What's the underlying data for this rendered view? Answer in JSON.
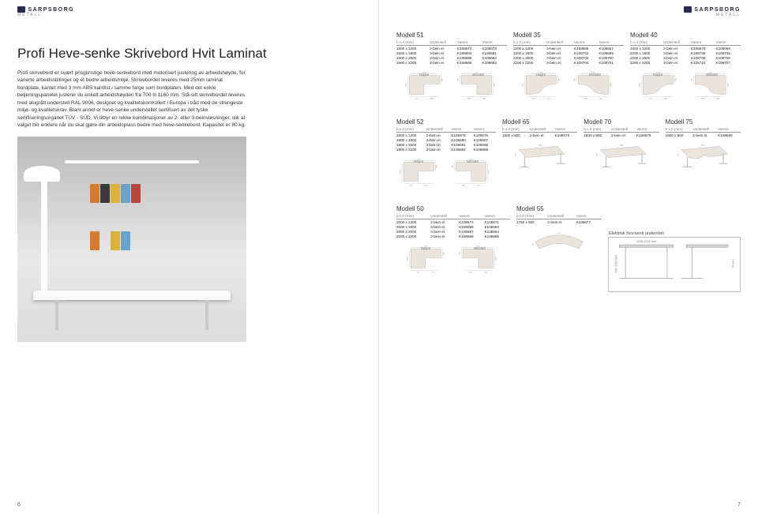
{
  "brand": "SARPSBORG",
  "brand_sub": "METALL",
  "page_left_num": "6",
  "page_right_num": "7",
  "title": "Profi Heve-senke Skrivebord Hvit Laminat",
  "description": "Profi skrivebord er svært prisgunstige heve-senkebord med motorisert justering av arbeidshøyde, for varierte arbeidsstillinger og et bedre arbeidsmiljø. Skrivebordet leveres med 25mm laminat bordplate, kantet med 3 mm ABS kantlist i samme farge som bordplaten. Med det enkle betjeningspanelet justerer du enkelt arbeidshøyden fra 700 til 1160 mm. Stå-sitt skrivebordet leveres med alugrått understell RAL 9006, designet og kvalitetskontrollert i Europa i tråd med de strengeste miljø- og kvalitetskrav. Blant annet er heve-senke understellet sertifisert av det tyske sertifiseringsorganet TÜV - SÜD. Vi tilbyr en rekke kombinasjoner av 2- eller 3-beinsløsninger, slik at valget blir enklere når du skal gjøre din arbeidsplass bedre med heve-senkebord. Kapasitet er 80 kg.",
  "spec_headers": [
    "b x d (mm)",
    "Understell",
    "Varenr.",
    "Varenr."
  ],
  "col_labels": {
    "venstre": "Venstre",
    "hoyre": "Høyre"
  },
  "shape_labels": {
    "hoyre": "Høyre",
    "venstre": "Venstre"
  },
  "electric_caption": "Elektrisk hev/senk understell",
  "electric_dims": {
    "width_range": "1100-1700 mm",
    "height_range": "700-1160 mm",
    "stroke": "70 mm"
  },
  "models": {
    "m51": {
      "name": "Modell 51",
      "rows": [
        [
          "1600 x 1200",
          "2-bein el.",
          "K108674",
          "K108673"
        ],
        [
          "1600 x 1800",
          "3-bein el.",
          "K108684",
          "K108681"
        ],
        [
          "1600 x 2000",
          "3-bein el.",
          "K108685",
          "K108682"
        ],
        [
          "1600 x 2200",
          "3-bein el.",
          "K108686",
          "K108683"
        ]
      ],
      "dims": {
        "w1": "1600",
        "w2": "1600",
        "d1": "800",
        "d2": "800",
        "d3": "1200",
        "off1": "600",
        "off2": "600"
      }
    },
    "m35": {
      "name": "Modell 35",
      "rows": [
        [
          "2200 x 1200",
          "2-bein el.",
          "K108668",
          "K108667"
        ],
        [
          "2200 x 1800",
          "3-bein el.",
          "K108702",
          "K108699"
        ],
        [
          "2200 x 2000",
          "3-bein el.",
          "K108703",
          "K108700"
        ],
        [
          "2200 x 2200",
          "3-bein el.",
          "K108704",
          "K108701"
        ]
      ],
      "dims": {
        "w1": "2200",
        "w2": "2200",
        "d1": "800",
        "d2": "800",
        "d3": "1200",
        "off1": "600",
        "off2": "600"
      }
    },
    "m40": {
      "name": "Modell 40",
      "rows": [
        [
          "2200 x 1200",
          "2-bein el.",
          "K108670",
          "K108669"
        ],
        [
          "2200 x 1800",
          "3-bein el.",
          "K108708",
          "K108705"
        ],
        [
          "2200 x 2000",
          "3-bein el.",
          "K108709",
          "K108706"
        ],
        [
          "2200 x 2200",
          "3-bein el.",
          "K108710",
          "K108707"
        ]
      ],
      "dims": {
        "w1": "2200",
        "w2": "2200",
        "d1": "800",
        "d2": "800",
        "d3": "1200",
        "off1": "600",
        "off2": "600"
      }
    },
    "m52": {
      "name": "Modell 52",
      "rows": [
        [
          "1800 x 1200",
          "2-bein el.",
          "K108676",
          "K108675"
        ],
        [
          "1800 x 1800",
          "3-bein el.",
          "K108690",
          "K108687"
        ],
        [
          "1800 x 2000",
          "3-bein el.",
          "K108691",
          "K108688"
        ],
        [
          "1800 x 2200",
          "3-bein el.",
          "K108692",
          "K108689"
        ]
      ],
      "dims": {
        "w1": "1800",
        "w2": "1800",
        "d1": "800",
        "d2": "800",
        "d3": "1200",
        "off1": "600",
        "off2": "600"
      }
    },
    "m65": {
      "name": "Modell 65",
      "rows": [
        [
          "1600 x 800",
          "2-bein el.",
          "K108678",
          ""
        ]
      ],
      "dims": {
        "w": "1600",
        "d": "800"
      }
    },
    "m70": {
      "name": "Modell 70",
      "rows": [
        [
          "1800 x 800",
          "2-bein el.",
          "K108679",
          ""
        ]
      ],
      "dims": {
        "w": "1800",
        "d": "800"
      }
    },
    "m75": {
      "name": "Modell 75",
      "rows": [
        [
          "1800 x 900",
          "2-bein el.",
          "K108680",
          ""
        ]
      ],
      "dims": {
        "w": "1800",
        "d": "900"
      }
    },
    "m50": {
      "name": "Modell 50",
      "rows": [
        [
          "2000 x 1200",
          "2-bein el.",
          "K108672",
          "K108671"
        ],
        [
          "2000 x 1800",
          "3-bein el.",
          "K108696",
          "K108693"
        ],
        [
          "2000 x 2000",
          "3-bein el.",
          "K108697",
          "K108694"
        ],
        [
          "2000 x 2200",
          "3-bein el.",
          "K108698",
          "K108695"
        ]
      ],
      "dims": {
        "w1": "2000",
        "w2": "2000",
        "d1": "800",
        "d2": "800",
        "d3": "1200",
        "off1": "600",
        "off2": "600"
      }
    },
    "m55": {
      "name": "Modell 55",
      "rows": [
        [
          "1750 x 800",
          "2-bein el.",
          "K108677",
          ""
        ]
      ],
      "dims": {
        "w": "1750",
        "d": "800"
      }
    }
  },
  "colors": {
    "desk_fill": "#e9e4de",
    "desk_stroke": "#b7b1a7",
    "dim_line": "#9a968e"
  }
}
